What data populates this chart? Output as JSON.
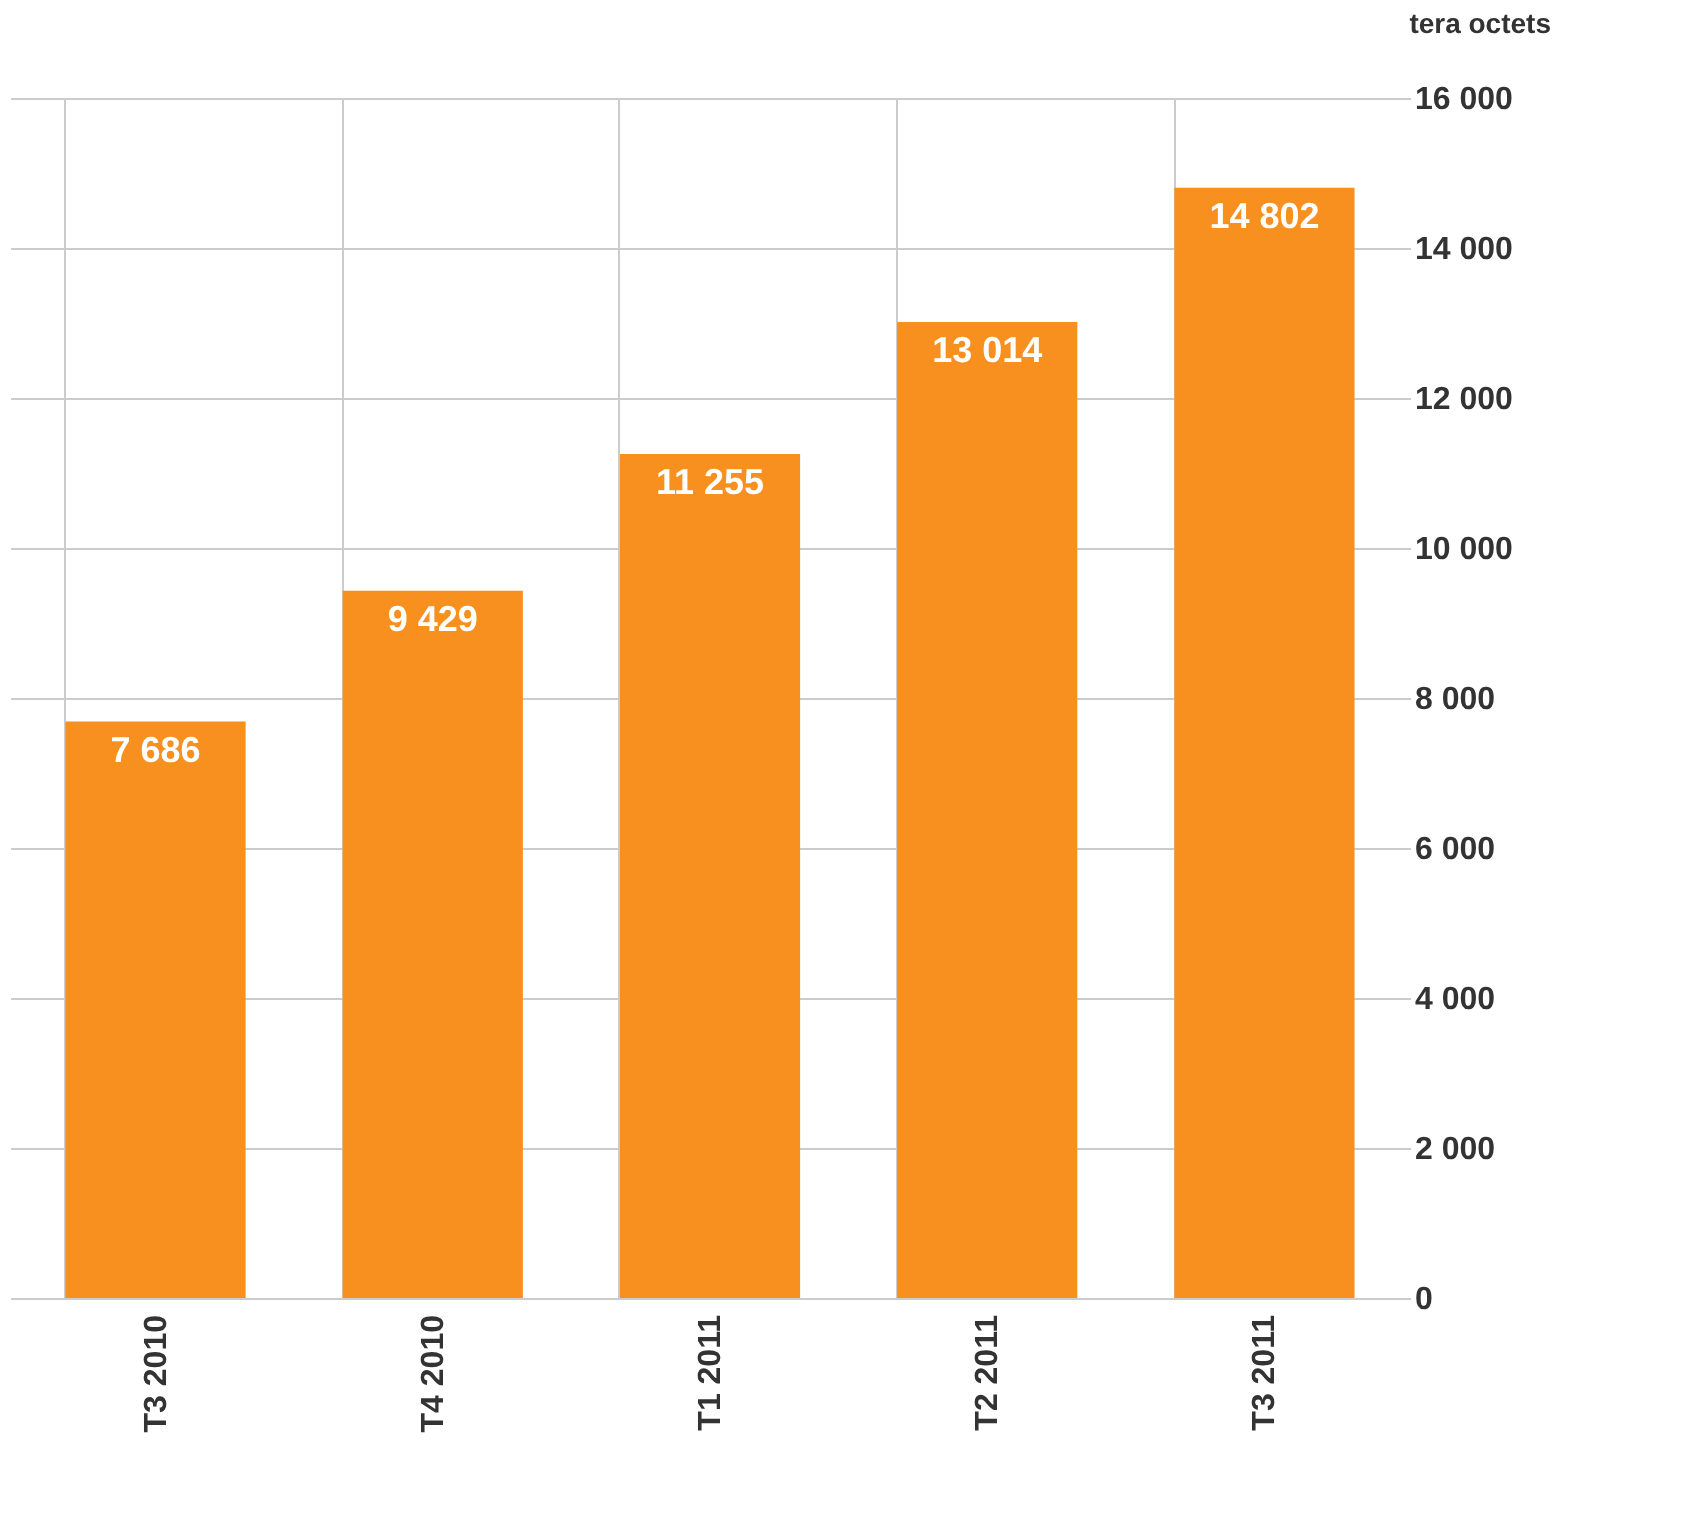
{
  "chart_data": {
    "type": "bar",
    "ylabel": "tera octets",
    "categories": [
      "T3 2010",
      "T4 2010",
      "T1 2011",
      "T2 2011",
      "T3 2011"
    ],
    "values": [
      7686,
      9429,
      11255,
      13014,
      14802
    ],
    "value_labels": [
      "7 686",
      "9 429",
      "11 255",
      "13 014",
      "14 802"
    ],
    "color": "#f7901e",
    "ylim": [
      0,
      16000
    ],
    "yticks": [
      0,
      {
        "value": 2000,
        "label": "2 000"
      },
      {
        "value": 4000,
        "label": "4 000"
      },
      {
        "value": 6000,
        "label": "6 000"
      },
      {
        "value": 8000,
        "label": "8 000"
      },
      {
        "value": 10000,
        "label": "10 000"
      },
      {
        "value": 12000,
        "label": "12 000"
      },
      {
        "value": 14000,
        "label": "14 000"
      },
      {
        "value": 16000,
        "label": "16 000"
      }
    ],
    "grid": true
  }
}
